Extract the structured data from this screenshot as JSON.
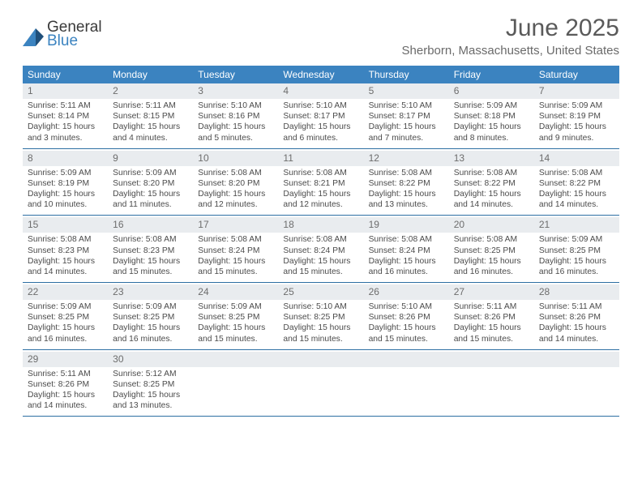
{
  "brand": {
    "line1": "General",
    "line2": "Blue",
    "accent_color": "#3b83c0",
    "text_color": "#3a3a3a",
    "mark_color_dark": "#1f4f7a"
  },
  "title": "June 2025",
  "subtitle": "Sherborn, Massachusetts, United States",
  "colors": {
    "header_bg": "#3b83c0",
    "row_band": "#e9ecef",
    "divider": "#2d6fa3",
    "text": "#4b4b4b",
    "muted": "#6a6a6a",
    "background": "#ffffff"
  },
  "weekdays": [
    "Sunday",
    "Monday",
    "Tuesday",
    "Wednesday",
    "Thursday",
    "Friday",
    "Saturday"
  ],
  "weeks": [
    {
      "numbers": [
        "1",
        "2",
        "3",
        "4",
        "5",
        "6",
        "7"
      ],
      "cells": [
        {
          "sunrise": "Sunrise: 5:11 AM",
          "sunset": "Sunset: 8:14 PM",
          "d1": "Daylight: 15 hours",
          "d2": "and 3 minutes."
        },
        {
          "sunrise": "Sunrise: 5:11 AM",
          "sunset": "Sunset: 8:15 PM",
          "d1": "Daylight: 15 hours",
          "d2": "and 4 minutes."
        },
        {
          "sunrise": "Sunrise: 5:10 AM",
          "sunset": "Sunset: 8:16 PM",
          "d1": "Daylight: 15 hours",
          "d2": "and 5 minutes."
        },
        {
          "sunrise": "Sunrise: 5:10 AM",
          "sunset": "Sunset: 8:17 PM",
          "d1": "Daylight: 15 hours",
          "d2": "and 6 minutes."
        },
        {
          "sunrise": "Sunrise: 5:10 AM",
          "sunset": "Sunset: 8:17 PM",
          "d1": "Daylight: 15 hours",
          "d2": "and 7 minutes."
        },
        {
          "sunrise": "Sunrise: 5:09 AM",
          "sunset": "Sunset: 8:18 PM",
          "d1": "Daylight: 15 hours",
          "d2": "and 8 minutes."
        },
        {
          "sunrise": "Sunrise: 5:09 AM",
          "sunset": "Sunset: 8:19 PM",
          "d1": "Daylight: 15 hours",
          "d2": "and 9 minutes."
        }
      ]
    },
    {
      "numbers": [
        "8",
        "9",
        "10",
        "11",
        "12",
        "13",
        "14"
      ],
      "cells": [
        {
          "sunrise": "Sunrise: 5:09 AM",
          "sunset": "Sunset: 8:19 PM",
          "d1": "Daylight: 15 hours",
          "d2": "and 10 minutes."
        },
        {
          "sunrise": "Sunrise: 5:09 AM",
          "sunset": "Sunset: 8:20 PM",
          "d1": "Daylight: 15 hours",
          "d2": "and 11 minutes."
        },
        {
          "sunrise": "Sunrise: 5:08 AM",
          "sunset": "Sunset: 8:20 PM",
          "d1": "Daylight: 15 hours",
          "d2": "and 12 minutes."
        },
        {
          "sunrise": "Sunrise: 5:08 AM",
          "sunset": "Sunset: 8:21 PM",
          "d1": "Daylight: 15 hours",
          "d2": "and 12 minutes."
        },
        {
          "sunrise": "Sunrise: 5:08 AM",
          "sunset": "Sunset: 8:22 PM",
          "d1": "Daylight: 15 hours",
          "d2": "and 13 minutes."
        },
        {
          "sunrise": "Sunrise: 5:08 AM",
          "sunset": "Sunset: 8:22 PM",
          "d1": "Daylight: 15 hours",
          "d2": "and 14 minutes."
        },
        {
          "sunrise": "Sunrise: 5:08 AM",
          "sunset": "Sunset: 8:22 PM",
          "d1": "Daylight: 15 hours",
          "d2": "and 14 minutes."
        }
      ]
    },
    {
      "numbers": [
        "15",
        "16",
        "17",
        "18",
        "19",
        "20",
        "21"
      ],
      "cells": [
        {
          "sunrise": "Sunrise: 5:08 AM",
          "sunset": "Sunset: 8:23 PM",
          "d1": "Daylight: 15 hours",
          "d2": "and 14 minutes."
        },
        {
          "sunrise": "Sunrise: 5:08 AM",
          "sunset": "Sunset: 8:23 PM",
          "d1": "Daylight: 15 hours",
          "d2": "and 15 minutes."
        },
        {
          "sunrise": "Sunrise: 5:08 AM",
          "sunset": "Sunset: 8:24 PM",
          "d1": "Daylight: 15 hours",
          "d2": "and 15 minutes."
        },
        {
          "sunrise": "Sunrise: 5:08 AM",
          "sunset": "Sunset: 8:24 PM",
          "d1": "Daylight: 15 hours",
          "d2": "and 15 minutes."
        },
        {
          "sunrise": "Sunrise: 5:08 AM",
          "sunset": "Sunset: 8:24 PM",
          "d1": "Daylight: 15 hours",
          "d2": "and 16 minutes."
        },
        {
          "sunrise": "Sunrise: 5:08 AM",
          "sunset": "Sunset: 8:25 PM",
          "d1": "Daylight: 15 hours",
          "d2": "and 16 minutes."
        },
        {
          "sunrise": "Sunrise: 5:09 AM",
          "sunset": "Sunset: 8:25 PM",
          "d1": "Daylight: 15 hours",
          "d2": "and 16 minutes."
        }
      ]
    },
    {
      "numbers": [
        "22",
        "23",
        "24",
        "25",
        "26",
        "27",
        "28"
      ],
      "cells": [
        {
          "sunrise": "Sunrise: 5:09 AM",
          "sunset": "Sunset: 8:25 PM",
          "d1": "Daylight: 15 hours",
          "d2": "and 16 minutes."
        },
        {
          "sunrise": "Sunrise: 5:09 AM",
          "sunset": "Sunset: 8:25 PM",
          "d1": "Daylight: 15 hours",
          "d2": "and 16 minutes."
        },
        {
          "sunrise": "Sunrise: 5:09 AM",
          "sunset": "Sunset: 8:25 PM",
          "d1": "Daylight: 15 hours",
          "d2": "and 15 minutes."
        },
        {
          "sunrise": "Sunrise: 5:10 AM",
          "sunset": "Sunset: 8:25 PM",
          "d1": "Daylight: 15 hours",
          "d2": "and 15 minutes."
        },
        {
          "sunrise": "Sunrise: 5:10 AM",
          "sunset": "Sunset: 8:26 PM",
          "d1": "Daylight: 15 hours",
          "d2": "and 15 minutes."
        },
        {
          "sunrise": "Sunrise: 5:11 AM",
          "sunset": "Sunset: 8:26 PM",
          "d1": "Daylight: 15 hours",
          "d2": "and 15 minutes."
        },
        {
          "sunrise": "Sunrise: 5:11 AM",
          "sunset": "Sunset: 8:26 PM",
          "d1": "Daylight: 15 hours",
          "d2": "and 14 minutes."
        }
      ]
    },
    {
      "numbers": [
        "29",
        "30",
        "",
        "",
        "",
        "",
        ""
      ],
      "cells": [
        {
          "sunrise": "Sunrise: 5:11 AM",
          "sunset": "Sunset: 8:26 PM",
          "d1": "Daylight: 15 hours",
          "d2": "and 14 minutes."
        },
        {
          "sunrise": "Sunrise: 5:12 AM",
          "sunset": "Sunset: 8:25 PM",
          "d1": "Daylight: 15 hours",
          "d2": "and 13 minutes."
        },
        null,
        null,
        null,
        null,
        null
      ]
    }
  ]
}
